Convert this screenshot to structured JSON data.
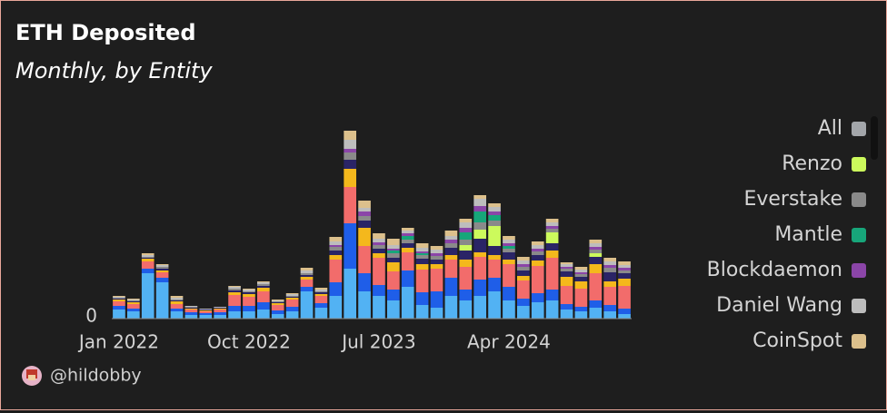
{
  "chart_data": {
    "type": "bar",
    "stacked": true,
    "title": "ETH Deposited",
    "subtitle": "Monthly, by Entity",
    "author": "@hildobby",
    "categories": [
      "Jan 2022",
      null,
      null,
      null,
      null,
      null,
      null,
      null,
      null,
      "Oct 2022",
      null,
      null,
      null,
      null,
      null,
      null,
      null,
      null,
      "Jul 2023",
      null,
      null,
      null,
      null,
      null,
      null,
      null,
      null,
      "Apr 2024",
      null,
      null,
      null,
      null,
      null,
      null,
      null,
      null
    ],
    "ylim": [
      0,
      250
    ],
    "yticks": [
      0
    ],
    "series": [
      {
        "color": "#52b2f3",
        "values": [
          10,
          8,
          50,
          40,
          8,
          4,
          4,
          4,
          8,
          8,
          10,
          5,
          8,
          30,
          12,
          25,
          55,
          30,
          25,
          20,
          35,
          15,
          12,
          25,
          20,
          25,
          30,
          20,
          14,
          18,
          20,
          10,
          8,
          12,
          8,
          5
        ]
      },
      {
        "color": "#1f5ee8",
        "values": [
          4,
          3,
          5,
          5,
          3,
          3,
          2,
          3,
          6,
          6,
          8,
          4,
          5,
          5,
          5,
          15,
          50,
          20,
          12,
          12,
          18,
          14,
          18,
          20,
          12,
          18,
          15,
          15,
          8,
          10,
          12,
          6,
          5,
          8,
          7,
          6
        ]
      },
      {
        "color": "#f26c6b",
        "values": [
          5,
          5,
          8,
          6,
          5,
          3,
          2,
          3,
          12,
          10,
          12,
          6,
          8,
          8,
          8,
          25,
          40,
          30,
          30,
          20,
          20,
          25,
          25,
          20,
          25,
          25,
          20,
          25,
          20,
          30,
          35,
          20,
          20,
          30,
          20,
          25
        ]
      },
      {
        "color": "#f4b81c",
        "values": [
          2,
          2,
          3,
          2,
          3,
          1,
          1,
          1,
          3,
          3,
          4,
          2,
          2,
          3,
          2,
          5,
          20,
          20,
          5,
          10,
          5,
          6,
          5,
          5,
          8,
          5,
          5,
          5,
          5,
          6,
          8,
          10,
          8,
          10,
          6,
          8
        ]
      },
      {
        "color": "#2a2466",
        "values": [
          1,
          1,
          1,
          2,
          1,
          1,
          1,
          1,
          2,
          2,
          2,
          1,
          1,
          2,
          2,
          5,
          10,
          8,
          5,
          5,
          5,
          6,
          5,
          8,
          10,
          15,
          10,
          8,
          6,
          6,
          8,
          6,
          5,
          8,
          10,
          6
        ]
      },
      {
        "name": "All",
        "color": "#a3a6aa",
        "values": [
          null,
          null,
          null,
          null,
          null,
          null,
          null,
          null,
          null,
          null,
          null,
          null,
          null,
          null,
          null,
          null,
          null,
          null,
          null,
          null,
          null,
          null,
          null,
          null,
          null,
          null,
          null,
          null,
          null,
          null,
          null,
          null,
          null,
          null,
          null,
          null
        ]
      },
      {
        "name": "Renzo",
        "color": "#ccfa5c",
        "values": [
          0,
          0,
          0,
          0,
          0,
          0,
          0,
          0,
          0,
          0,
          0,
          0,
          0,
          0,
          0,
          0,
          0,
          0,
          0,
          0,
          0,
          0,
          0,
          0,
          6,
          10,
          22,
          0,
          0,
          0,
          12,
          0,
          0,
          4,
          0,
          0
        ]
      },
      {
        "name": "Everstake",
        "color": "#8a8a8a",
        "values": [
          1,
          1,
          1,
          2,
          1,
          1,
          0,
          0,
          2,
          1,
          2,
          1,
          1,
          2,
          1,
          4,
          8,
          5,
          4,
          5,
          4,
          4,
          4,
          5,
          6,
          8,
          6,
          4,
          4,
          4,
          4,
          3,
          3,
          4,
          5,
          3
        ]
      },
      {
        "name": "Mantle",
        "color": "#17a67a",
        "values": [
          0,
          0,
          0,
          0,
          0,
          0,
          0,
          0,
          0,
          0,
          0,
          0,
          0,
          0,
          0,
          0,
          0,
          0,
          0,
          3,
          4,
          2,
          0,
          0,
          8,
          12,
          6,
          3,
          0,
          0,
          0,
          0,
          0,
          0,
          0,
          0
        ]
      },
      {
        "name": "Blockdaemon",
        "color": "#8b45a8",
        "values": [
          0,
          0,
          0,
          0,
          0,
          0,
          0,
          0,
          0,
          0,
          0,
          0,
          0,
          0,
          0,
          2,
          4,
          5,
          3,
          2,
          3,
          2,
          3,
          4,
          5,
          6,
          4,
          3,
          3,
          3,
          3,
          2,
          2,
          3,
          3,
          3
        ]
      },
      {
        "name": "Daniel Wang",
        "color": "#bdbdbd",
        "values": [
          1,
          1,
          2,
          2,
          2,
          1,
          1,
          1,
          2,
          2,
          2,
          1,
          2,
          3,
          2,
          4,
          10,
          4,
          4,
          4,
          3,
          4,
          4,
          4,
          6,
          8,
          5,
          4,
          4,
          4,
          4,
          3,
          3,
          4,
          4,
          3
        ]
      },
      {
        "name": "CoinSpot",
        "color": "#dcc08c",
        "values": [
          1,
          1,
          2,
          1,
          2,
          0,
          0,
          0,
          1,
          1,
          1,
          1,
          1,
          3,
          2,
          5,
          10,
          8,
          6,
          7,
          3,
          5,
          4,
          6,
          4,
          4,
          4,
          4,
          4,
          4,
          4,
          2,
          3,
          4,
          4,
          4
        ]
      }
    ]
  }
}
